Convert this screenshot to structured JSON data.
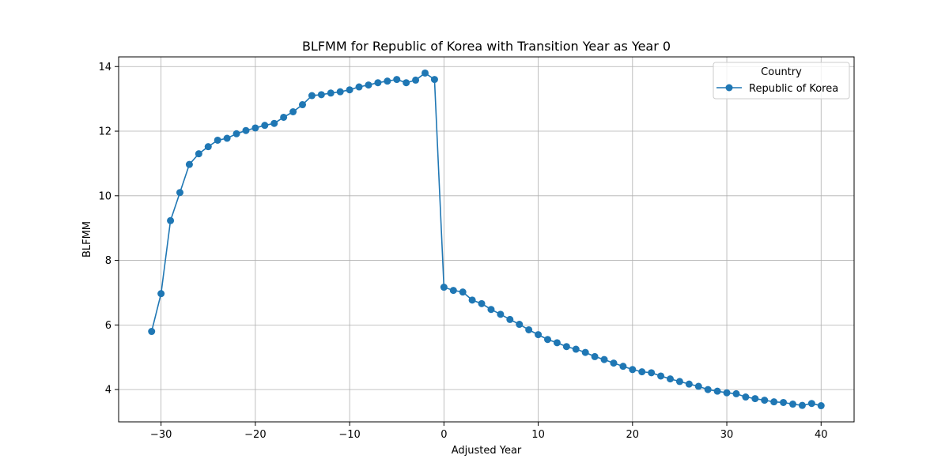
{
  "chart_data": {
    "type": "line",
    "title": "BLFMM for Republic of Korea with Transition Year as Year 0",
    "xlabel": "Adjusted Year",
    "ylabel": "BLFMM",
    "xlim": [
      -34.5,
      43.5
    ],
    "ylim": [
      3.0,
      14.3
    ],
    "xticks": [
      -30,
      -20,
      -10,
      0,
      10,
      20,
      30,
      40
    ],
    "xtick_labels": [
      "−30",
      "−20",
      "−10",
      "0",
      "10",
      "20",
      "30",
      "40"
    ],
    "yticks": [
      4,
      6,
      8,
      10,
      12,
      14
    ],
    "ytick_labels": [
      "4",
      "6",
      "8",
      "10",
      "12",
      "14"
    ],
    "grid": true,
    "legend": {
      "title": "Country",
      "placement": "top-right"
    },
    "series": [
      {
        "name": "Republic of Korea",
        "color": "#1f77b4",
        "marker": "circle",
        "x": [
          -31,
          -30,
          -29,
          -28,
          -27,
          -26,
          -25,
          -24,
          -23,
          -22,
          -21,
          -20,
          -19,
          -18,
          -17,
          -16,
          -15,
          -14,
          -13,
          -12,
          -11,
          -10,
          -9,
          -8,
          -7,
          -6,
          -5,
          -4,
          -3,
          -2,
          -1,
          0,
          1,
          2,
          3,
          4,
          5,
          6,
          7,
          8,
          9,
          10,
          11,
          12,
          13,
          14,
          15,
          16,
          17,
          18,
          19,
          20,
          21,
          22,
          23,
          24,
          25,
          26,
          27,
          28,
          29,
          30,
          31,
          32,
          33,
          34,
          35,
          36,
          37,
          38,
          39,
          40
        ],
        "y": [
          5.8,
          6.97,
          9.23,
          10.1,
          10.97,
          11.3,
          11.52,
          11.72,
          11.78,
          11.92,
          12.02,
          12.1,
          12.18,
          12.24,
          12.43,
          12.6,
          12.82,
          13.1,
          13.13,
          13.18,
          13.22,
          13.28,
          13.37,
          13.43,
          13.5,
          13.55,
          13.6,
          13.5,
          13.58,
          13.8,
          13.6,
          7.17,
          7.07,
          7.02,
          6.77,
          6.66,
          6.48,
          6.33,
          6.17,
          6.02,
          5.85,
          5.7,
          5.55,
          5.45,
          5.33,
          5.25,
          5.15,
          5.02,
          4.93,
          4.82,
          4.72,
          4.62,
          4.55,
          4.52,
          4.42,
          4.33,
          4.25,
          4.17,
          4.1,
          4.0,
          3.95,
          3.9,
          3.87,
          3.77,
          3.72,
          3.67,
          3.62,
          3.6,
          3.55,
          3.51,
          3.57,
          3.5
        ]
      }
    ]
  }
}
